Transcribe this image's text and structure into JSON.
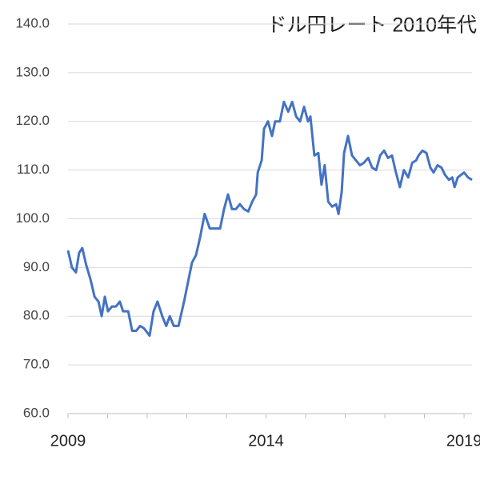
{
  "chart_data": {
    "type": "line",
    "title": "ドル円レート 2010年代",
    "x": [
      2009.0,
      2009.1,
      2009.2,
      2009.28,
      2009.36,
      2009.46,
      2009.57,
      2009.67,
      2009.77,
      2009.85,
      2009.93,
      2010.01,
      2010.11,
      2010.21,
      2010.31,
      2010.39,
      2010.52,
      2010.62,
      2010.72,
      2010.82,
      2010.92,
      2011.06,
      2011.16,
      2011.26,
      2011.38,
      2011.48,
      2011.57,
      2011.67,
      2011.79,
      2011.93,
      2012.13,
      2012.23,
      2012.33,
      2012.45,
      2012.58,
      2012.7,
      2012.84,
      2012.94,
      2013.04,
      2013.14,
      2013.24,
      2013.34,
      2013.44,
      2013.55,
      2013.65,
      2013.75,
      2013.79,
      2013.89,
      2013.95,
      2014.05,
      2014.15,
      2014.23,
      2014.35,
      2014.45,
      2014.56,
      2014.66,
      2014.76,
      2014.86,
      2014.96,
      2015.06,
      2015.12,
      2015.22,
      2015.32,
      2015.4,
      2015.48,
      2015.57,
      2015.67,
      2015.77,
      2015.83,
      2015.91,
      2015.97,
      2016.07,
      2016.17,
      2016.27,
      2016.37,
      2016.47,
      2016.58,
      2016.68,
      2016.78,
      2016.88,
      2016.98,
      2017.08,
      2017.18,
      2017.28,
      2017.38,
      2017.48,
      2017.59,
      2017.69,
      2017.79,
      2017.85,
      2017.95,
      2018.05,
      2018.15,
      2018.23,
      2018.33,
      2018.43,
      2018.52,
      2018.62,
      2018.7,
      2018.76,
      2018.84,
      2018.92,
      2019.0,
      2019.1,
      2019.2
    ],
    "series": [
      {
        "name": "ドル円",
        "color": "#4472c4",
        "values": [
          93.5,
          90,
          89,
          93,
          94,
          90.5,
          87.5,
          84,
          83,
          80,
          84,
          81,
          82,
          82,
          83,
          81,
          81,
          77,
          77,
          78,
          77.5,
          76,
          81,
          83,
          80,
          78,
          80,
          78,
          78,
          83,
          91,
          92.5,
          96,
          101,
          98,
          98,
          98,
          102,
          105,
          102,
          102,
          103,
          102,
          101.5,
          103.5,
          105,
          109.5,
          112,
          118.5,
          120,
          117,
          120,
          120,
          124,
          122,
          124,
          121,
          120,
          123,
          120,
          121,
          113,
          113.5,
          107,
          111,
          103.5,
          102.5,
          103,
          101,
          105.5,
          113.5,
          117,
          113,
          112,
          111,
          111.5,
          112.5,
          110.5,
          110,
          113,
          114,
          112.5,
          113,
          109.5,
          106.5,
          110,
          108.5,
          111.5,
          112,
          113,
          114,
          113.5,
          110.5,
          109.5,
          111,
          110.5,
          109,
          108,
          108.5,
          106.5,
          108.5,
          109,
          109.5,
          108.5,
          108
        ]
      }
    ],
    "xlim": [
      2009,
      2019.2
    ],
    "xticks": [
      2009,
      2014,
      2019
    ],
    "xminorticks": [
      2010,
      2011,
      2012,
      2013,
      2015,
      2016,
      2017,
      2018
    ],
    "ylim": [
      60,
      140
    ],
    "yticks": [
      {
        "value": 60,
        "label": "60.0"
      },
      {
        "value": 70,
        "label": "70.0"
      },
      {
        "value": 80,
        "label": "80.0"
      },
      {
        "value": 90,
        "label": "90.0"
      },
      {
        "value": 100,
        "label": "100.0"
      },
      {
        "value": 110,
        "label": "110.0"
      },
      {
        "value": 120,
        "label": "120.0"
      },
      {
        "value": 130,
        "label": "130.0"
      },
      {
        "value": 140,
        "label": "140.0"
      }
    ],
    "grid": true
  }
}
